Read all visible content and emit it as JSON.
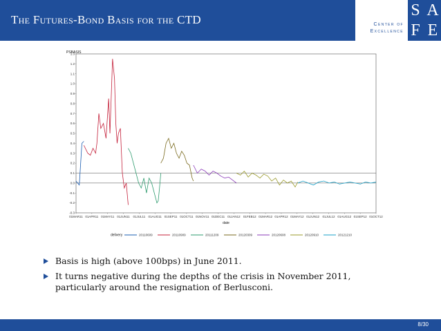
{
  "slide": {
    "title": "The Futures-Bond Basis for the CTD",
    "page": "8/30"
  },
  "logo": {
    "line1": "Center of",
    "line2": "Excellence",
    "letters": [
      "S",
      "A",
      "F",
      "E"
    ]
  },
  "bullets": [
    "Basis is high (above 100bps) in June 2011.",
    "It turns negative during the depths of the crisis in November 2011, particularly around the resignation of Berlusconi."
  ],
  "colors": {
    "header": "#1f4e9a",
    "series": [
      "#1a5cb0",
      "#c4203a",
      "#2e9b6e",
      "#7a6a1e",
      "#8a3ab8",
      "#9a9a2a",
      "#1aa0c8"
    ]
  },
  "chart_data": {
    "type": "line",
    "ylabel": "PSBASIS",
    "xlabel": "date",
    "ylim": [
      -0.3,
      1.3
    ],
    "yticks": [
      1.3,
      1.2,
      1.1,
      1.0,
      0.9,
      0.8,
      0.7,
      0.6,
      0.5,
      0.4,
      0.3,
      0.2,
      0.1,
      0.0,
      -0.1,
      -0.2,
      -0.3
    ],
    "xticks": [
      "01MAR11",
      "01APR11",
      "01MAY11",
      "01JUN11",
      "01JUL11",
      "01AUG11",
      "01SEP11",
      "01OCT11",
      "01NOV11",
      "01DEC11",
      "01JAN12",
      "01FEB12",
      "01MAR12",
      "01APR12",
      "01MAY12",
      "01JUN12",
      "01JUL12",
      "01AUG12",
      "01SEP12",
      "01OCT12"
    ],
    "reference_lines": [
      0.0,
      0.1
    ],
    "legend_title": "delivery",
    "legend_placement": "bottom",
    "grid": false,
    "series": [
      {
        "name": "20110609",
        "x": [
          0.0,
          0.25,
          0.45,
          0.6
        ],
        "y": [
          0.02,
          -0.02,
          0.4,
          0.42
        ]
      },
      {
        "name": "20110909",
        "x": [
          0.6,
          0.9,
          1.1,
          1.3,
          1.5,
          1.6,
          1.75,
          1.9,
          2.1,
          2.3,
          2.5,
          2.6,
          2.8,
          2.95,
          3.05,
          3.15,
          3.25,
          3.4,
          3.55,
          3.7,
          3.85,
          4.0
        ],
        "y": [
          0.38,
          0.3,
          0.28,
          0.35,
          0.3,
          0.4,
          0.7,
          0.55,
          0.6,
          0.45,
          0.85,
          0.5,
          1.25,
          1.05,
          0.6,
          0.4,
          0.5,
          0.55,
          0.1,
          -0.05,
          0.0,
          -0.22
        ]
      },
      {
        "name": "20111209",
        "x": [
          4.0,
          4.2,
          4.4,
          4.6,
          4.8,
          5.0,
          5.2,
          5.4,
          5.6,
          5.8,
          6.0,
          6.1,
          6.2,
          6.3,
          6.4,
          6.5
        ],
        "y": [
          0.35,
          0.3,
          0.2,
          0.1,
          0.0,
          -0.05,
          0.05,
          -0.1,
          0.05,
          0.0,
          -0.1,
          -0.15,
          -0.2,
          -0.18,
          -0.05,
          0.1
        ]
      },
      {
        "name": "20120309",
        "x": [
          6.5,
          6.7,
          6.9,
          7.1,
          7.3,
          7.5,
          7.7,
          7.9,
          8.1,
          8.3,
          8.5,
          8.7,
          8.9,
          9.0
        ],
        "y": [
          0.2,
          0.25,
          0.4,
          0.45,
          0.35,
          0.4,
          0.3,
          0.25,
          0.32,
          0.28,
          0.2,
          0.18,
          0.05,
          0.02
        ]
      },
      {
        "name": "20120608",
        "x": [
          9.0,
          9.3,
          9.6,
          9.9,
          10.2,
          10.5,
          10.8,
          11.1,
          11.4,
          11.7,
          12.0,
          12.3
        ],
        "y": [
          0.18,
          0.1,
          0.14,
          0.12,
          0.08,
          0.12,
          0.1,
          0.07,
          0.05,
          0.06,
          0.03,
          0.0
        ]
      },
      {
        "name": "20120910",
        "x": [
          12.3,
          12.6,
          12.9,
          13.2,
          13.5,
          13.8,
          14.1,
          14.4,
          14.7,
          15.0,
          15.3,
          15.6,
          15.9,
          16.2,
          16.5,
          16.8,
          17.0
        ],
        "y": [
          0.1,
          0.08,
          0.12,
          0.06,
          0.1,
          0.08,
          0.05,
          0.09,
          0.07,
          0.02,
          0.05,
          -0.02,
          0.03,
          0.0,
          0.02,
          -0.04,
          0.01
        ]
      },
      {
        "name": "20121210",
        "x": [
          17.0,
          17.4,
          17.8,
          18.2,
          18.6,
          19.0,
          19.4,
          19.8,
          20.2,
          20.6,
          21.0,
          21.4,
          21.8,
          22.2,
          22.6,
          23.0
        ],
        "y": [
          0.0,
          0.02,
          0.0,
          -0.02,
          0.01,
          0.02,
          0.0,
          0.01,
          -0.01,
          0.0,
          0.01,
          0.0,
          -0.01,
          0.01,
          0.0,
          0.01
        ]
      }
    ]
  }
}
